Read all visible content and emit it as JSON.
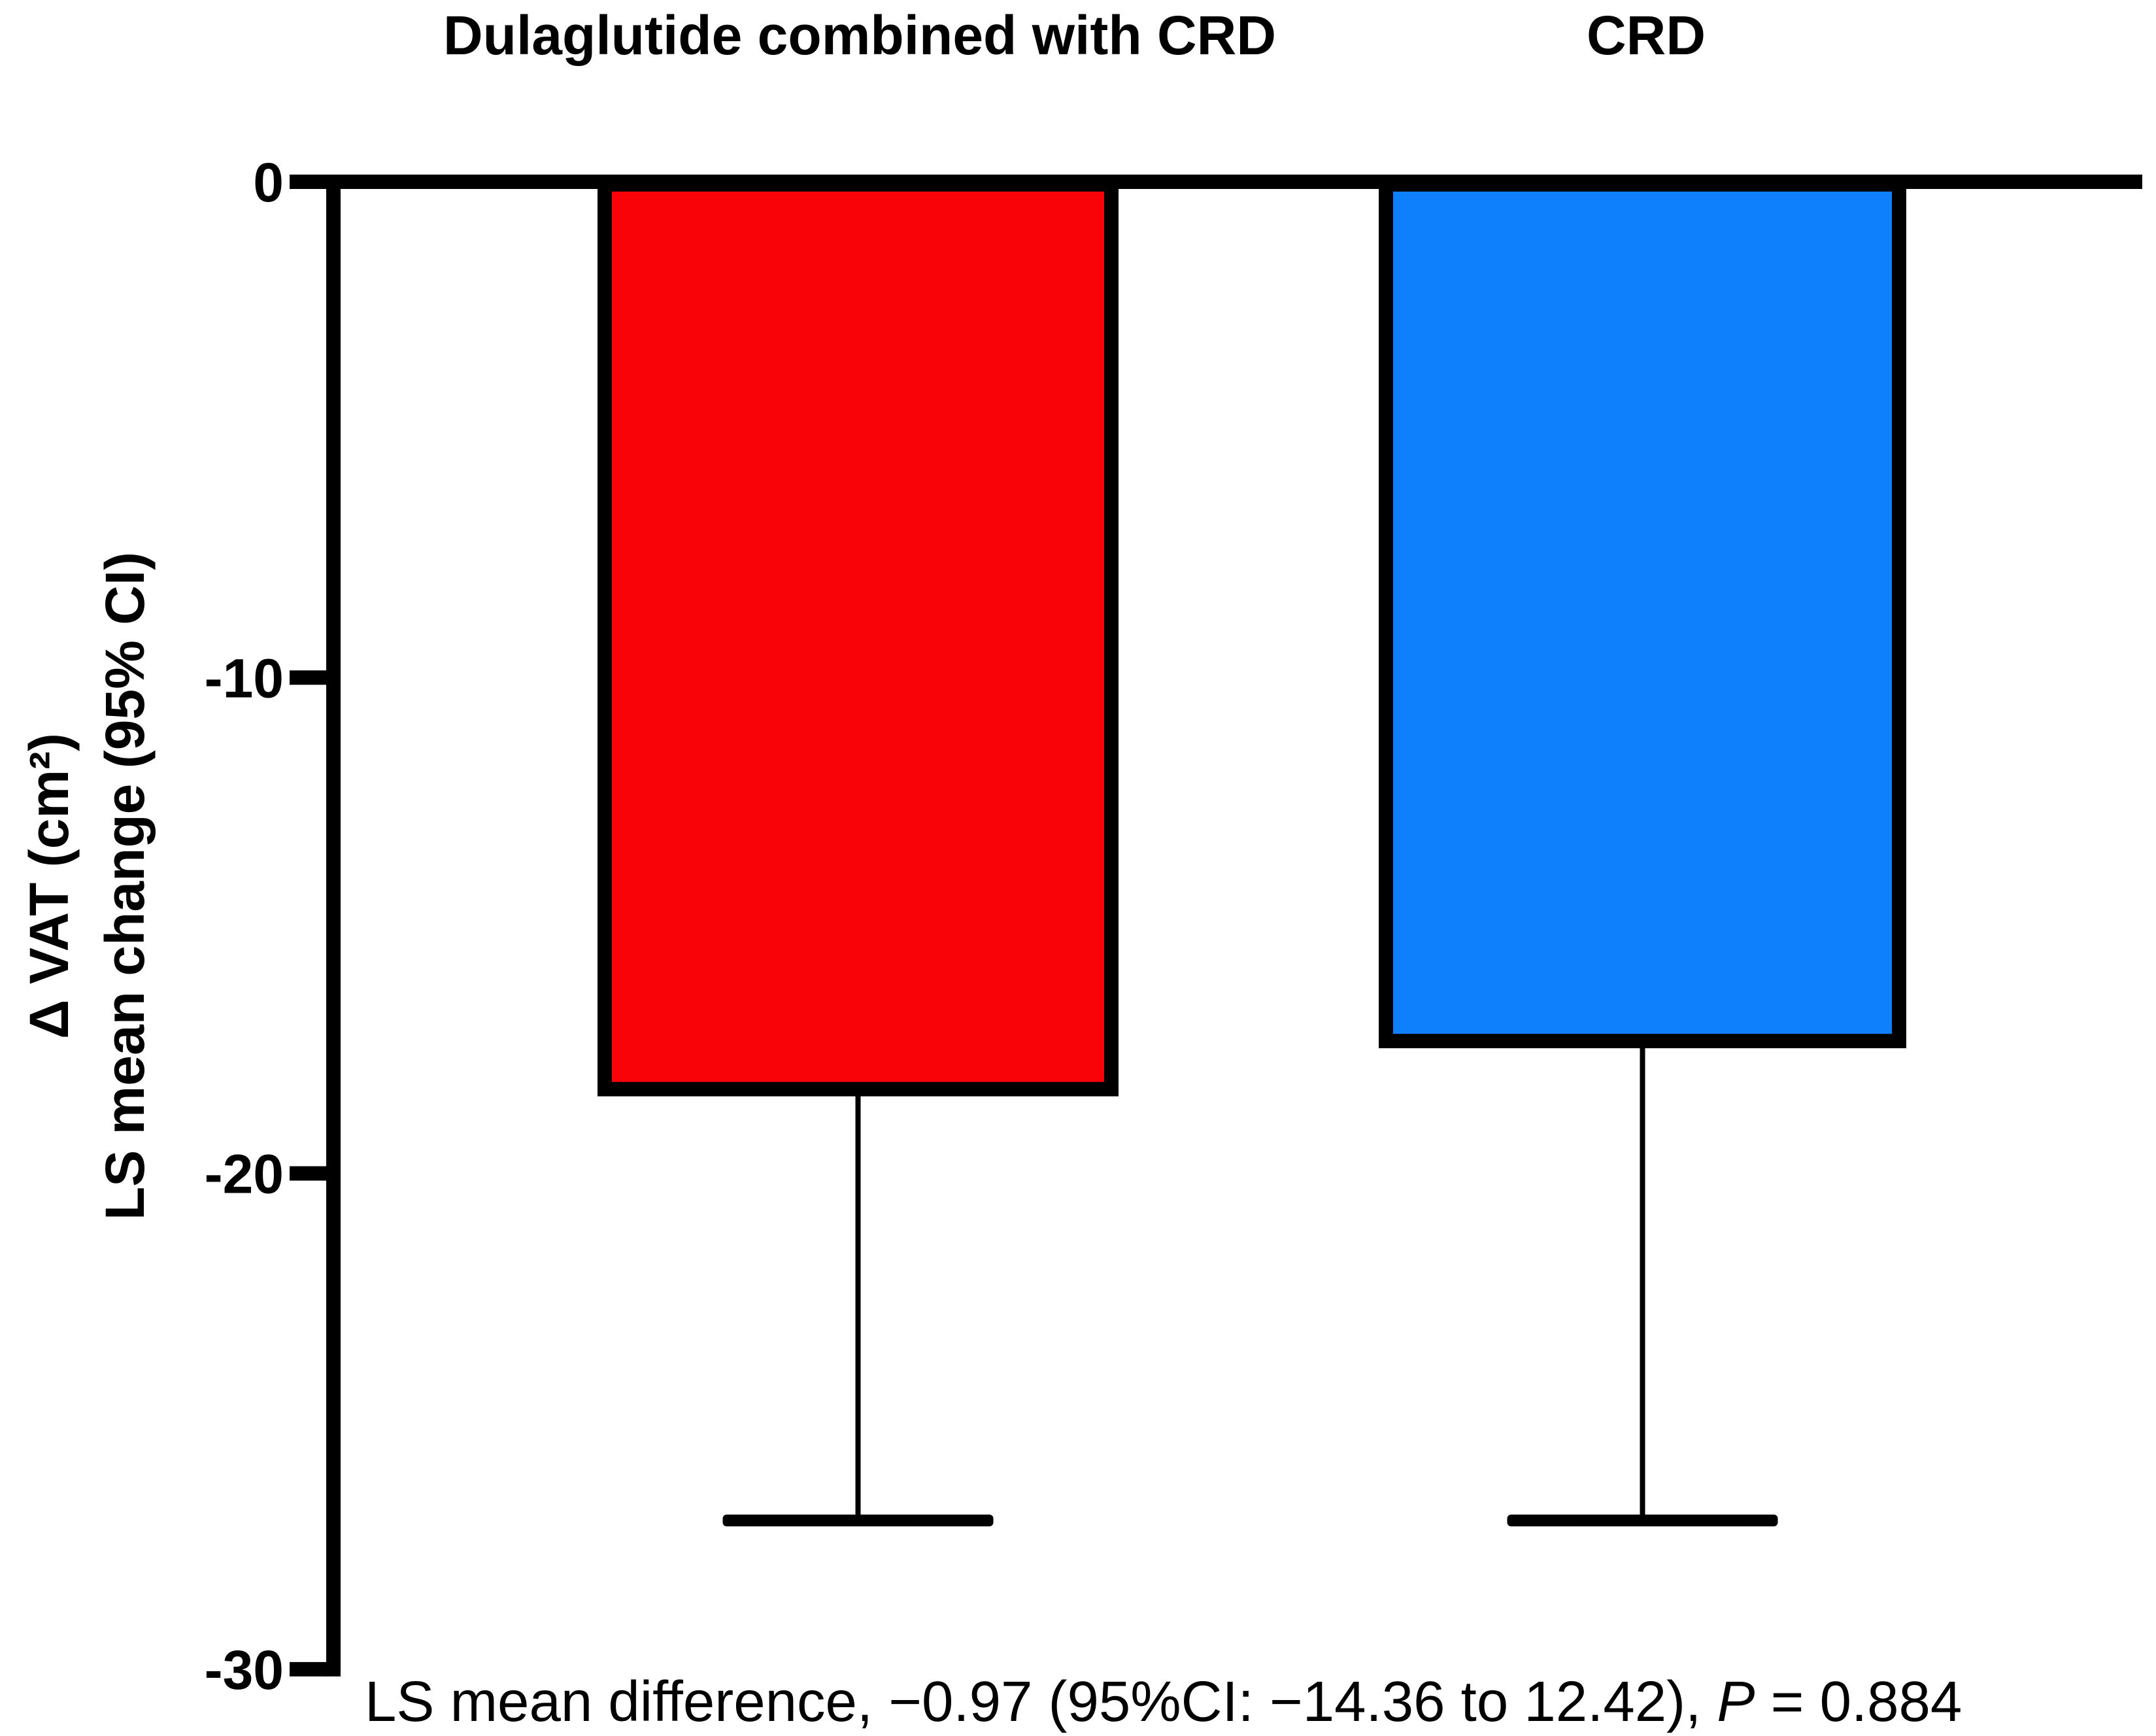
{
  "chart_data": {
    "type": "bar",
    "title": "",
    "categories": [
      "Dulaglutide combined with CRD",
      "CRD"
    ],
    "values": [
      -18.3,
      -17.33
    ],
    "ci_lower": [
      -27.0,
      -27.0
    ],
    "bar_colors": [
      "#f90208",
      "#0f80fc"
    ],
    "axis_color": "#000000",
    "background_color": "#ffffff",
    "ylabel_line1": "Δ VAT (cm²)",
    "ylabel_line2": "LS mean change (95% CI)",
    "yticks": [
      0,
      -10,
      -20,
      -30
    ],
    "ylim": [
      -30,
      0
    ],
    "grid": false,
    "legend": "none",
    "annotation": {
      "prefix": "LS mean difference, −0.97 (95%CI: −14.36 to 12.42), ",
      "p_label": "P",
      "p_suffix": " = 0.884"
    }
  }
}
